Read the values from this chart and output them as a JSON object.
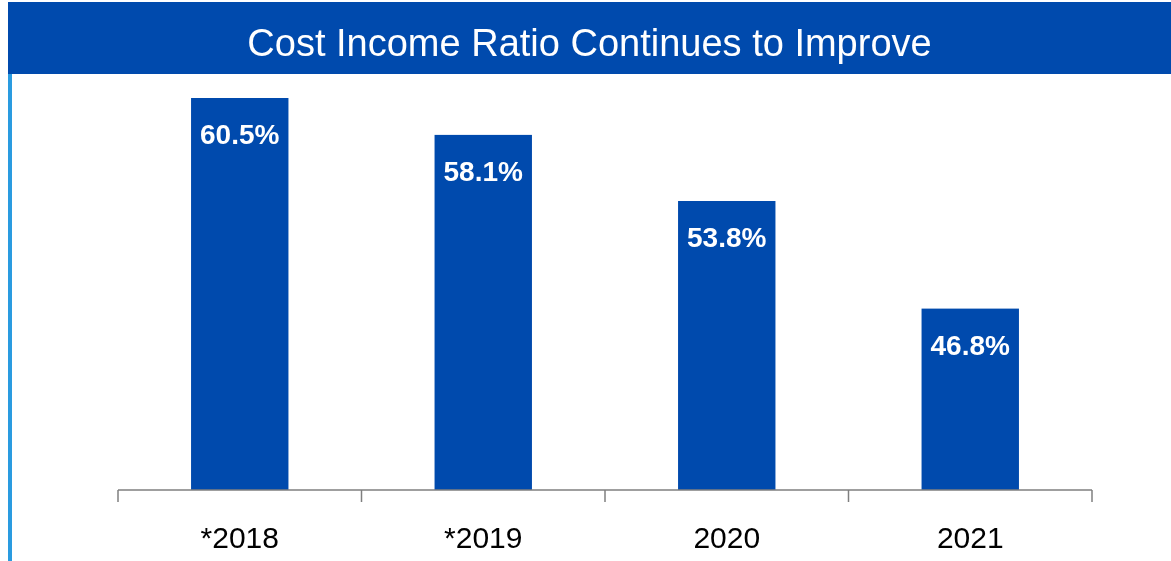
{
  "chart_data": {
    "type": "bar",
    "title": "Cost Income Ratio Continues to Improve",
    "categories": [
      "*2018",
      "*2019",
      "2020",
      "2021"
    ],
    "values": [
      60.5,
      58.1,
      53.8,
      46.8
    ],
    "value_labels": [
      "60.5%",
      "58.1%",
      "53.8%",
      "46.8%"
    ],
    "color": "#004aad",
    "ylim": [
      35,
      60.5
    ]
  }
}
